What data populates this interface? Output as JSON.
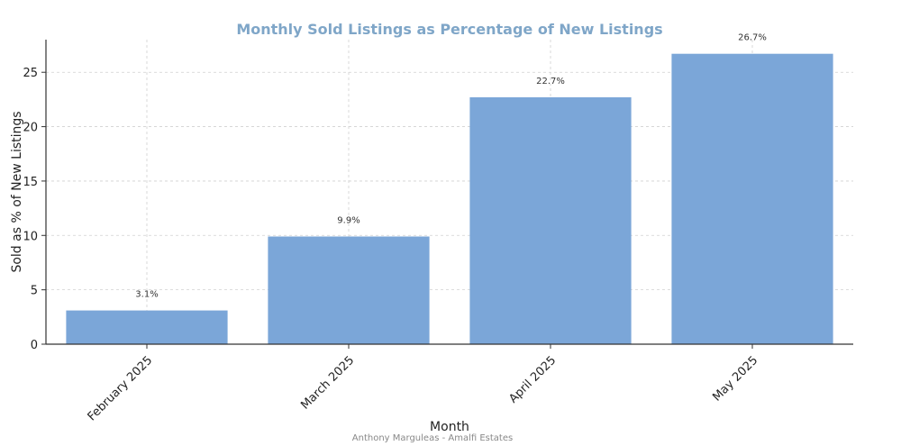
{
  "chart_data": {
    "type": "bar",
    "title": "Monthly Sold Listings as Percentage of New Listings",
    "xlabel": "Month",
    "ylabel": "Sold as % of New Listings",
    "categories": [
      "February 2025",
      "March 2025",
      "April 2025",
      "May 2025"
    ],
    "values": [
      3.1,
      9.9,
      22.7,
      26.7
    ],
    "data_labels": [
      "3.1%",
      "9.9%",
      "22.7%",
      "26.7%"
    ],
    "yticks": [
      0,
      5,
      10,
      15,
      20,
      25
    ],
    "ylim": [
      0,
      28
    ],
    "grid": true,
    "colors": {
      "bar": "#7ba6d8",
      "title": "#7fa6c8",
      "grid": "#d0d0d0",
      "axis": "#333333"
    }
  },
  "footer": "Anthony Marguleas - Amalfi Estates"
}
